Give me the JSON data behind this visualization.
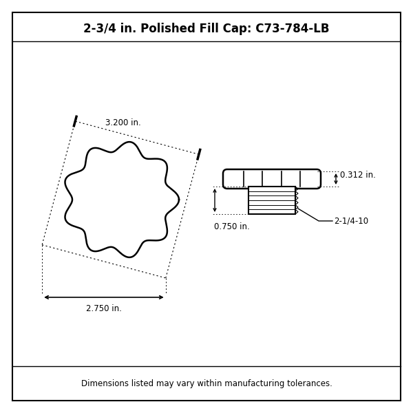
{
  "title": "2-3/4 in. Polished Fill Cap: C73-784-LB",
  "footer": "Dimensions listed may vary within manufacturing tolerances.",
  "dim_outer": "3.200 in.",
  "dim_width": "2.750 in.",
  "dim_height": "0.750 in.",
  "dim_thread_height": "0.312 in.",
  "dim_thread": "2-1/4-10",
  "bg_color": "#ffffff",
  "line_color": "#000000",
  "title_fontsize": 12,
  "footer_fontsize": 8.5,
  "label_fontsize": 8.5
}
